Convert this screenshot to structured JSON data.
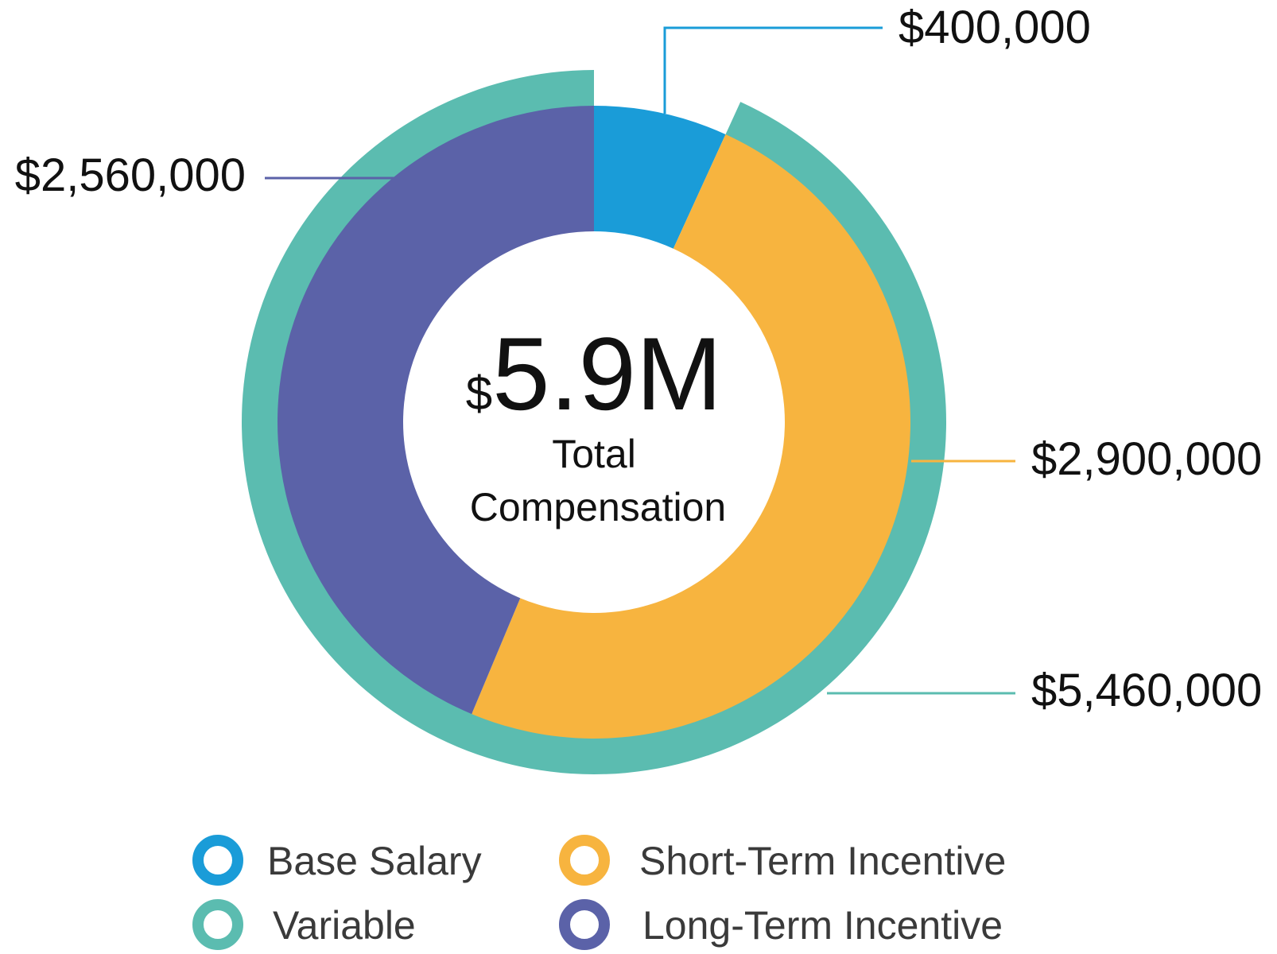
{
  "chart_data": {
    "type": "pie",
    "center": {
      "currency": "$",
      "value": "5.9M",
      "line1": "Total",
      "line2": "Compensation"
    },
    "inner_ring": [
      {
        "name": "Base Salary",
        "value": 400000,
        "label": "$400,000",
        "color": "#1a9cd8"
      },
      {
        "name": "Short-Term Incentive",
        "value": 2900000,
        "label": "$2,900,000",
        "color": "#f7b43f"
      },
      {
        "name": "Long-Term Incentive",
        "value": 2560000,
        "label": "$2,560,000",
        "color": "#5b62a8"
      }
    ],
    "outer_ring": {
      "name": "Variable",
      "value": 5460000,
      "label": "$5,460,000",
      "color": "#5bbcb0"
    },
    "legend": [
      {
        "label": "Base Salary",
        "color": "#1a9cd8"
      },
      {
        "label": "Short-Term Incentive",
        "color": "#f7b43f"
      },
      {
        "label": "Variable",
        "color": "#5bbcb0"
      },
      {
        "label": "Long-Term Incentive",
        "color": "#5b62a8"
      }
    ]
  }
}
